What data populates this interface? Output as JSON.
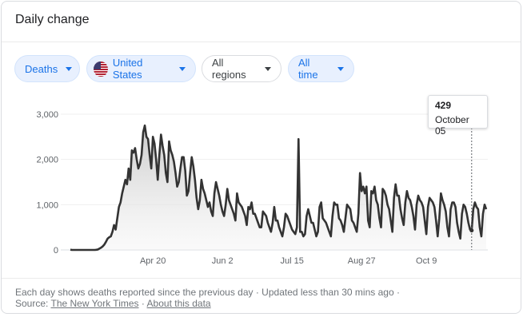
{
  "card": {
    "title": "Daily change"
  },
  "filters": {
    "metric": "Deaths",
    "country": "United States",
    "region": "All regions",
    "period": "All time"
  },
  "tooltip": {
    "value": "429",
    "date": "October 05"
  },
  "footer": {
    "note": "Each day shows deaths reported since the previous day · Updated less than 30 mins ago  ·",
    "source_prefix": "Source:",
    "source_link": "The New York Times",
    "separator": "·",
    "about_link": "About this data"
  },
  "colors": {
    "accent": "#1a73e8",
    "line": "#333333",
    "chip_bg": "#e8f0fe"
  },
  "chart_data": {
    "type": "area",
    "xlabel": "",
    "ylabel": "",
    "ylim": [
      0,
      3000
    ],
    "y_ticks": [
      "3,000",
      "2,000",
      "1,000",
      "0"
    ],
    "x_ticks": [
      "Apr 20",
      "Jun 2",
      "Jul 15",
      "Aug 27",
      "Oct 9"
    ],
    "x_start": "Feb 29",
    "x_end": "Oct 9",
    "values": [
      5,
      0,
      0,
      0,
      0,
      0,
      0,
      0,
      0,
      0,
      0,
      0,
      0,
      0,
      0,
      0,
      3,
      10,
      30,
      50,
      80,
      120,
      180,
      250,
      280,
      300,
      400,
      550,
      450,
      700,
      950,
      1050,
      1250,
      1400,
      1550,
      1450,
      1800,
      1550,
      2200,
      2150,
      2250,
      2000,
      1800,
      1900,
      2100,
      2600,
      2750,
      2500,
      2450,
      2100,
      1800,
      2500,
      2350,
      2000,
      1550,
      2100,
      2550,
      2300,
      2100,
      1700,
      1500,
      2400,
      2200,
      2100,
      1950,
      1700,
      1400,
      1500,
      1800,
      2050,
      2050,
      1750,
      1200,
      1300,
      1700,
      2050,
      1850,
      1550,
      1150,
      900,
      1100,
      1550,
      1350,
      1250,
      1100,
      950,
      1050,
      850,
      750,
      1250,
      1500,
      1350,
      1200,
      1000,
      850,
      750,
      1000,
      1350,
      1100,
      1000,
      900,
      800,
      650,
      1250,
      1050,
      1000,
      950,
      850,
      750,
      550,
      950,
      900,
      1050,
      800,
      800,
      700,
      600,
      500,
      500,
      850,
      800,
      750,
      600,
      500,
      400,
      600,
      950,
      650,
      650,
      500,
      400,
      300,
      500,
      800,
      750,
      650,
      550,
      450,
      400,
      350,
      500,
      2450,
      400,
      400,
      300,
      350,
      750,
      900,
      750,
      600,
      600,
      450,
      300,
      400,
      950,
      1050,
      700,
      650,
      600,
      500,
      400,
      300,
      750,
      1050,
      1000,
      1000,
      700,
      650,
      550,
      400,
      700,
      1000,
      950,
      900,
      650,
      600,
      500,
      400,
      800,
      1700,
      1300,
      1400,
      1250,
      1400,
      650,
      500,
      1300,
      1250,
      1400,
      1100,
      1000,
      700,
      500,
      1350,
      1300,
      1200,
      1000,
      900,
      650,
      400,
      1150,
      1450,
      1200,
      1200,
      900,
      700,
      550,
      1050,
      1300,
      1150,
      1100,
      950,
      750,
      450,
      1000,
      1200,
      1100,
      1050,
      950,
      650,
      350,
      950,
      1150,
      1100,
      1050,
      950,
      650,
      300,
      700,
      1250,
      1100,
      1000,
      850,
      500,
      300,
      900,
      1050,
      1050,
      950,
      600,
      400,
      250,
      800,
      1000,
      950,
      800,
      600,
      450,
      430,
      900,
      1050,
      950,
      900,
      500,
      300,
      800,
      1000,
      900
    ]
  }
}
